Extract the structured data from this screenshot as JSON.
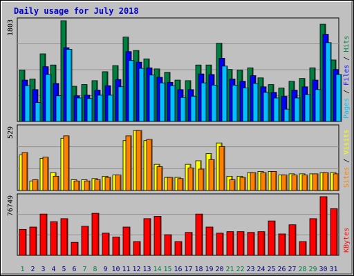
{
  "title": "Daily usage for July 2018",
  "colors": {
    "hits": "#008040",
    "files": "#0000ff",
    "pages": "#00c0ff",
    "visits": "#ffff00",
    "sites": "#ff8000",
    "kbytes": "#ff0000",
    "panel_bg": "#c0c0c0",
    "frame": "#a0a0a0",
    "weekend_label": "#008040",
    "weekday_label": "#000080"
  },
  "chart_data": [
    {
      "type": "bar",
      "panel": "hits-files-pages",
      "ymax_label": "1803",
      "ylim": [
        0,
        1803
      ],
      "legend": [
        {
          "text": "Hits",
          "color": "#008040"
        },
        {
          "text": "Files",
          "color": "#0000ff"
        },
        {
          "text": "Pages",
          "color": "#00c0ff"
        }
      ],
      "categories": [
        "1",
        "2",
        "3",
        "4",
        "5",
        "6",
        "7",
        "8",
        "9",
        "10",
        "11",
        "12",
        "13",
        "14",
        "15",
        "16",
        "17",
        "18",
        "19",
        "20",
        "21",
        "22",
        "23",
        "24",
        "25",
        "26",
        "27",
        "28",
        "29",
        "30",
        "31"
      ],
      "series": [
        {
          "name": "Hits",
          "values": [
            920,
            760,
            1210,
            1010,
            1803,
            630,
            660,
            730,
            890,
            1000,
            1510,
            1270,
            1120,
            940,
            880,
            740,
            730,
            1010,
            1010,
            1400,
            930,
            920,
            960,
            780,
            660,
            600,
            720,
            770,
            960,
            1740,
            1100
          ]
        },
        {
          "name": "Files",
          "values": [
            740,
            570,
            980,
            680,
            1320,
            460,
            470,
            560,
            640,
            750,
            1250,
            1060,
            960,
            790,
            700,
            570,
            570,
            850,
            840,
            1130,
            760,
            720,
            820,
            620,
            520,
            450,
            560,
            620,
            740,
            1560,
            930
          ]
        },
        {
          "name": "Pages",
          "values": [
            640,
            340,
            840,
            460,
            1290,
            420,
            410,
            470,
            470,
            620,
            1090,
            950,
            830,
            690,
            640,
            430,
            450,
            690,
            650,
            990,
            650,
            600,
            680,
            520,
            420,
            220,
            420,
            480,
            570,
            1410,
            840
          ]
        }
      ]
    },
    {
      "type": "bar",
      "panel": "visits-sites",
      "ymax_label": "529",
      "ylim": [
        0,
        529
      ],
      "legend": [
        {
          "text": "Visits",
          "color": "#ffff00"
        },
        {
          "text": "Sites",
          "color": "#ff8000"
        }
      ],
      "categories": [
        "1",
        "2",
        "3",
        "4",
        "5",
        "6",
        "7",
        "8",
        "9",
        "10",
        "11",
        "12",
        "13",
        "14",
        "15",
        "16",
        "17",
        "18",
        "19",
        "20",
        "21",
        "22",
        "23",
        "24",
        "25",
        "26",
        "27",
        "28",
        "29",
        "30",
        "31"
      ],
      "series": [
        {
          "name": "Visits",
          "values": [
            300,
            80,
            270,
            150,
            440,
            90,
            90,
            100,
            120,
            130,
            420,
            505,
            420,
            220,
            110,
            110,
            220,
            250,
            310,
            400,
            120,
            120,
            150,
            160,
            160,
            130,
            140,
            140,
            140,
            150,
            150
          ]
        },
        {
          "name": "Sites",
          "values": [
            320,
            90,
            280,
            120,
            460,
            80,
            80,
            90,
            110,
            130,
            460,
            505,
            430,
            200,
            110,
            100,
            190,
            180,
            260,
            370,
            90,
            110,
            150,
            150,
            160,
            130,
            130,
            130,
            140,
            150,
            140
          ]
        }
      ]
    },
    {
      "type": "bar",
      "panel": "kbytes",
      "ymax_label": "76749",
      "ylim": [
        0,
        76749
      ],
      "legend": [
        {
          "text": "KBytes",
          "color": "#ff0000"
        }
      ],
      "categories": [
        "1",
        "2",
        "3",
        "4",
        "5",
        "6",
        "7",
        "8",
        "9",
        "10",
        "11",
        "12",
        "13",
        "14",
        "15",
        "16",
        "17",
        "18",
        "19",
        "20",
        "21",
        "22",
        "23",
        "24",
        "25",
        "26",
        "27",
        "28",
        "29",
        "30",
        "31"
      ],
      "series": [
        {
          "name": "KBytes",
          "values": [
            34000,
            37000,
            54000,
            44000,
            48000,
            17000,
            38000,
            55000,
            29000,
            24000,
            37000,
            18000,
            48000,
            51000,
            27000,
            18000,
            30000,
            54000,
            37000,
            29000,
            31000,
            31000,
            30000,
            31000,
            45000,
            28000,
            40000,
            18000,
            48000,
            76749,
            61000
          ]
        }
      ]
    }
  ],
  "weekend_days": [
    "1",
    "7",
    "8",
    "14",
    "15",
    "21",
    "22",
    "28",
    "29"
  ]
}
